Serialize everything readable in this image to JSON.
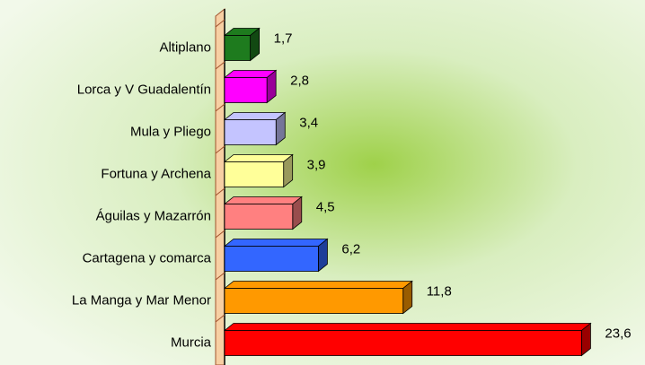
{
  "chart_data": {
    "type": "hbar3d",
    "categories": [
      "Altiplano",
      "Lorca y V Guadalentín",
      "Mula y Pliego",
      "Fortuna y Archena",
      "Águilas y Mazarrón",
      "Cartagena y comarca",
      "La Manga y Mar Menor",
      "Murcia"
    ],
    "values": [
      1.7,
      2.8,
      3.4,
      3.9,
      4.5,
      6.2,
      11.8,
      23.6
    ],
    "value_labels": [
      "1,7",
      "2,8",
      "3,4",
      "3,9",
      "4,5",
      "6,2",
      "11,8",
      "23,6"
    ],
    "colors": [
      "#1e7b1e",
      "#ff00ff",
      "#c4c4ff",
      "#ffff99",
      "#ff8080",
      "#3366ff",
      "#ff9900",
      "#ff0000"
    ],
    "xlim": [
      0,
      25
    ]
  }
}
